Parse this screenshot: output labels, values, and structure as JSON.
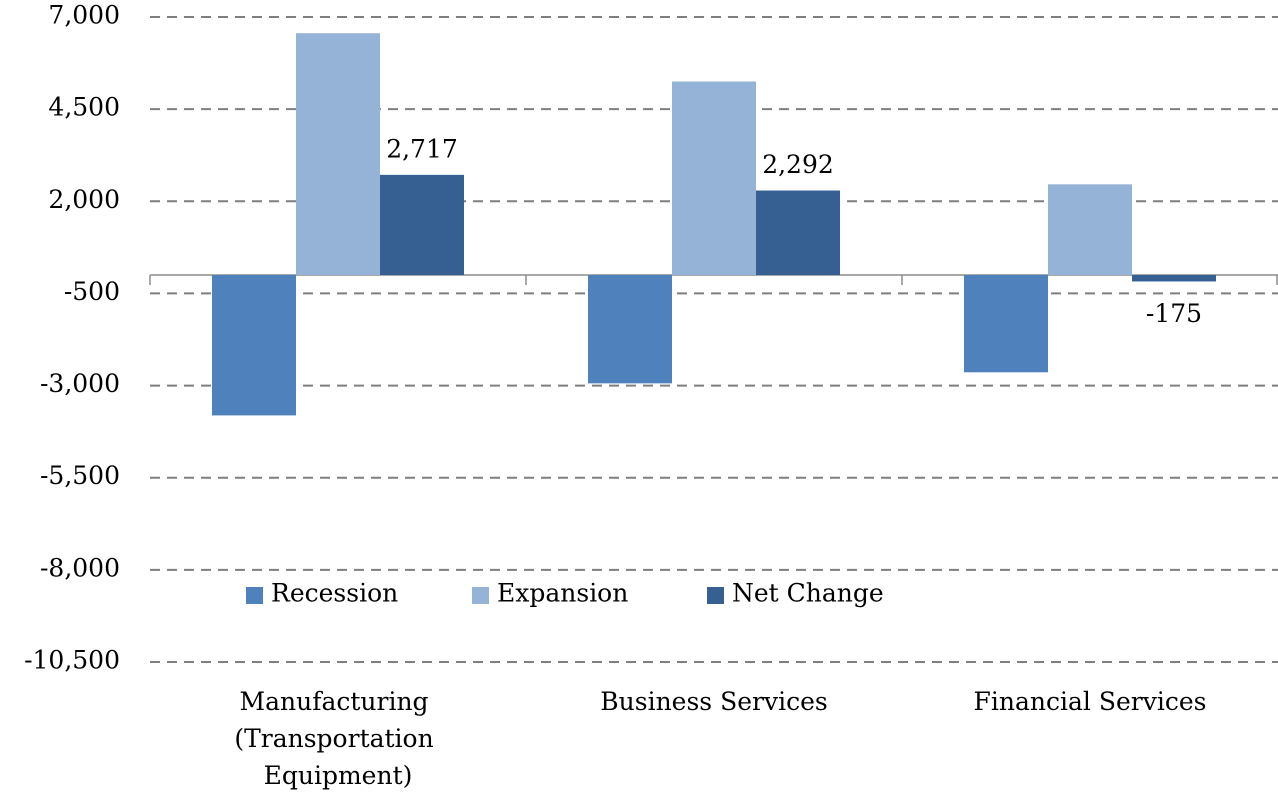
{
  "chart_data": {
    "type": "bar",
    "categories": [
      "Manufacturing (Transportation Equipment)",
      "Business Services",
      "Financial Services"
    ],
    "series": [
      {
        "name": "Recession",
        "color": "#4f81bd",
        "values": [
          -3810,
          -2940,
          -2640
        ]
      },
      {
        "name": "Expansion",
        "color": "#95b3d7",
        "values": [
          6560,
          5250,
          2460
        ]
      },
      {
        "name": "Net Change",
        "color": "#366092",
        "values": [
          2717,
          2292,
          -175
        ],
        "value_labels": [
          "2,717",
          "2,292",
          "-175"
        ]
      }
    ],
    "ylim": [
      -10500,
      7000
    ],
    "yticks": [
      {
        "value": 7000,
        "label": "7,000"
      },
      {
        "value": 4500,
        "label": "4,500"
      },
      {
        "value": 2000,
        "label": "2,000"
      },
      {
        "value": -500,
        "label": "-500"
      },
      {
        "value": -3000,
        "label": "-3,000"
      },
      {
        "value": -5500,
        "label": "-5,500"
      },
      {
        "value": -8000,
        "label": "-8,000"
      },
      {
        "value": -10500,
        "label": "-10,500"
      }
    ],
    "grid": true
  }
}
